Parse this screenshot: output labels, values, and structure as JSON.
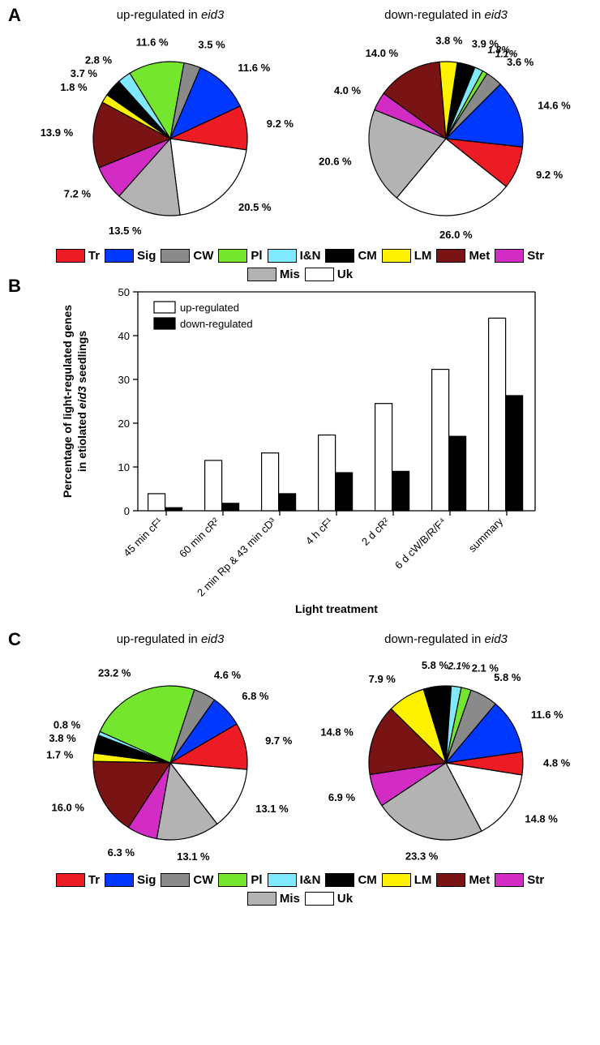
{
  "categories": [
    {
      "key": "Tr",
      "label": "Tr",
      "color": "#ed1c24"
    },
    {
      "key": "Sig",
      "label": "Sig",
      "color": "#0038ff"
    },
    {
      "key": "CW",
      "label": "CW",
      "color": "#8a8a8a"
    },
    {
      "key": "Pl",
      "label": "Pl",
      "color": "#74e62e"
    },
    {
      "key": "IN",
      "label": "I&N",
      "color": "#7fe9ff"
    },
    {
      "key": "CM",
      "label": "CM",
      "color": "#000000"
    },
    {
      "key": "LM",
      "label": "LM",
      "color": "#fff200"
    },
    {
      "key": "Met",
      "label": "Met",
      "color": "#7a1414"
    },
    {
      "key": "Str",
      "label": "Str",
      "color": "#d22cc5"
    },
    {
      "key": "Mis",
      "label": "Mis",
      "color": "#b3b3b3"
    },
    {
      "key": "Uk",
      "label": "Uk",
      "color": "#ffffff"
    }
  ],
  "panelA": {
    "label": "A",
    "titles": {
      "left": "up-regulated in eid3",
      "right": "down-regulated in eid3"
    },
    "left_slices": [
      {
        "k": "Sig",
        "v": 11.6
      },
      {
        "k": "Tr",
        "v": 9.2
      },
      {
        "k": "Uk",
        "v": 20.5
      },
      {
        "k": "Mis",
        "v": 13.5
      },
      {
        "k": "Str",
        "v": 7.2
      },
      {
        "k": "Met",
        "v": 13.9
      },
      {
        "k": "LM",
        "v": 1.8
      },
      {
        "k": "CM",
        "v": 3.7
      },
      {
        "k": "IN",
        "v": 2.8
      },
      {
        "k": "Pl",
        "v": 11.6
      },
      {
        "k": "CW",
        "v": 3.5
      }
    ],
    "right_slices": [
      {
        "k": "Sig",
        "v": 14.6
      },
      {
        "k": "Tr",
        "v": 9.2
      },
      {
        "k": "Uk",
        "v": 26.0
      },
      {
        "k": "Mis",
        "v": 20.6
      },
      {
        "k": "Str",
        "v": 4.0
      },
      {
        "k": "Met",
        "v": 14.0
      },
      {
        "k": "LM",
        "v": 3.8
      },
      {
        "k": "CM",
        "v": 3.9
      },
      {
        "k": "IN",
        "v": 1.8,
        "small": true
      },
      {
        "k": "Pl",
        "v": 1.1,
        "small": true
      },
      {
        "k": "CW",
        "v": 3.6
      }
    ],
    "left_start_deg": -67,
    "right_start_deg": -45
  },
  "panelB": {
    "label": "B",
    "xlabel": "Light treatment",
    "ylabel": "Percentage of light-regulated genes\nin etiolated eid3 seedlings",
    "ylabel_ital_word": "eid3",
    "ylim": [
      0,
      50
    ],
    "ytick_step": 10,
    "categories": [
      "45 min cF¹",
      "60 min cR²",
      "2 min Rp & 43 min cD³",
      "4 h cF¹",
      "2 d cR²",
      "6 d cW/B/R/F⁴",
      "summary"
    ],
    "series": [
      {
        "name": "up-regulated",
        "color": "#ffffff",
        "values": [
          3.9,
          11.5,
          13.2,
          17.3,
          24.5,
          32.3,
          44.0
        ]
      },
      {
        "name": "down-regulated",
        "color": "#000000",
        "values": [
          0.7,
          1.7,
          3.9,
          8.7,
          9.0,
          17.0,
          26.3
        ]
      }
    ],
    "axis_fontsize": 14,
    "tick_fontsize": 13,
    "legend_fontsize": 13
  },
  "panelC": {
    "label": "C",
    "titles": {
      "left": "up-regulated in eid3",
      "right": "down-regulated in eid3"
    },
    "left_slices": [
      {
        "k": "Sig",
        "v": 6.8
      },
      {
        "k": "Tr",
        "v": 9.7
      },
      {
        "k": "Uk",
        "v": 13.1
      },
      {
        "k": "Mis",
        "v": 13.1
      },
      {
        "k": "Str",
        "v": 6.3
      },
      {
        "k": "Met",
        "v": 16.0
      },
      {
        "k": "LM",
        "v": 1.7
      },
      {
        "k": "CM",
        "v": 3.8
      },
      {
        "k": "IN",
        "v": 0.8
      },
      {
        "k": "Pl",
        "v": 23.2
      },
      {
        "k": "CW",
        "v": 4.6
      }
    ],
    "right_slices": [
      {
        "k": "Sig",
        "v": 11.6
      },
      {
        "k": "Tr",
        "v": 4.8
      },
      {
        "k": "Uk",
        "v": 14.8
      },
      {
        "k": "Mis",
        "v": 23.3
      },
      {
        "k": "Str",
        "v": 6.9
      },
      {
        "k": "Met",
        "v": 14.8
      },
      {
        "k": "LM",
        "v": 7.9
      },
      {
        "k": "CM",
        "v": 5.8
      },
      {
        "k": "IN",
        "v": 2.1,
        "small": true
      },
      {
        "k": "Pl",
        "v": 2.1
      },
      {
        "k": "CW",
        "v": 5.8
      }
    ],
    "left_start_deg": -55,
    "right_start_deg": -50
  },
  "pie": {
    "radius": 95,
    "label_radius": 120,
    "stroke": "#000000",
    "stroke_width": 1.2
  }
}
